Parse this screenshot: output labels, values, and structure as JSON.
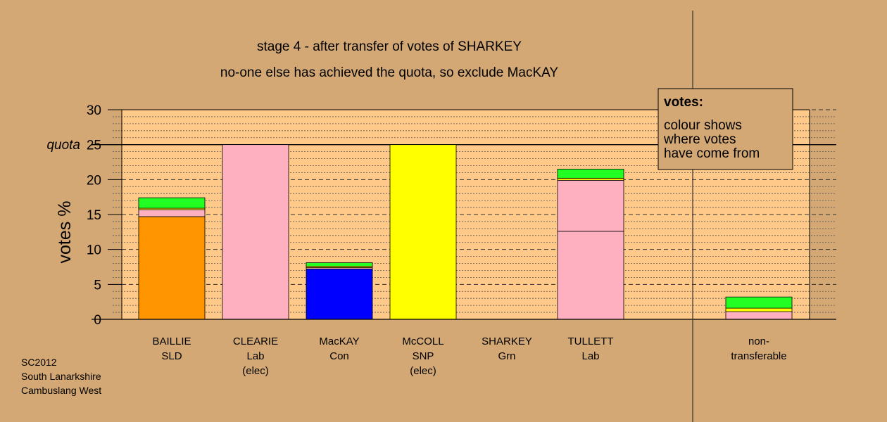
{
  "chart_data": {
    "type": "bar",
    "title": "stage 4 - after transfer of votes of SHARKEY",
    "subtitle": "no-one else has achieved the quota, so exclude MacKAY",
    "ylabel": "votes %",
    "ylim": [
      0,
      30
    ],
    "yticks": [
      0,
      5,
      10,
      15,
      20,
      25,
      30
    ],
    "quota": {
      "value": 25,
      "label": "quota"
    },
    "grid": "dotted minor lines every 1%, dashed major lines every 5%",
    "legend_position": "top-right",
    "legend": {
      "title": "votes:",
      "lines": [
        "colour shows",
        "where votes",
        "have come from"
      ]
    },
    "categories": [
      {
        "name": "BAILLIE",
        "party": "SLD",
        "status": ""
      },
      {
        "name": "CLEARIE",
        "party": "Lab",
        "status": "(elec)"
      },
      {
        "name": "MacKAY",
        "party": "Con",
        "status": ""
      },
      {
        "name": "McCOLL",
        "party": "SNP",
        "status": "(elec)"
      },
      {
        "name": "SHARKEY",
        "party": "Grn",
        "status": ""
      },
      {
        "name": "TULLETT",
        "party": "Lab",
        "status": ""
      },
      {
        "name": "non-",
        "party": "transferable",
        "status": ""
      }
    ],
    "stacks": [
      [
        {
          "color": "#ff9500",
          "value": 14.7
        },
        {
          "color": "#ffb0c0",
          "value": 1.0
        },
        {
          "color": "#ffff00",
          "value": 0.2
        },
        {
          "color": "#22ff22",
          "value": 1.5
        }
      ],
      [
        {
          "color": "#ffb0c0",
          "value": 25.0
        }
      ],
      [
        {
          "color": "#0000ff",
          "value": 7.2
        },
        {
          "color": "#ffb0c0",
          "value": 0.2
        },
        {
          "color": "#ffff00",
          "value": 0.2
        },
        {
          "color": "#22ff22",
          "value": 0.5
        }
      ],
      [
        {
          "color": "#ffff00",
          "value": 25.0
        }
      ],
      [],
      [
        {
          "color": "#ffb0c0",
          "value": 12.6
        },
        {
          "color": "#ffb0c0",
          "value": 7.3
        },
        {
          "color": "#ffff00",
          "value": 0.3
        },
        {
          "color": "#22ff22",
          "value": 1.3
        }
      ],
      [
        {
          "color": "#ffb0c0",
          "value": 1.1
        },
        {
          "color": "#ffff00",
          "value": 0.5
        },
        {
          "color": "#22ff22",
          "value": 1.6
        }
      ]
    ],
    "colors": {
      "background": "#d3a874",
      "plot_background": "#ffc98a",
      "legend_background": "#d3a874"
    }
  },
  "footer": {
    "line1": "SC2012",
    "line2": "South Lanarkshire",
    "line3": "Cambuslang West"
  }
}
